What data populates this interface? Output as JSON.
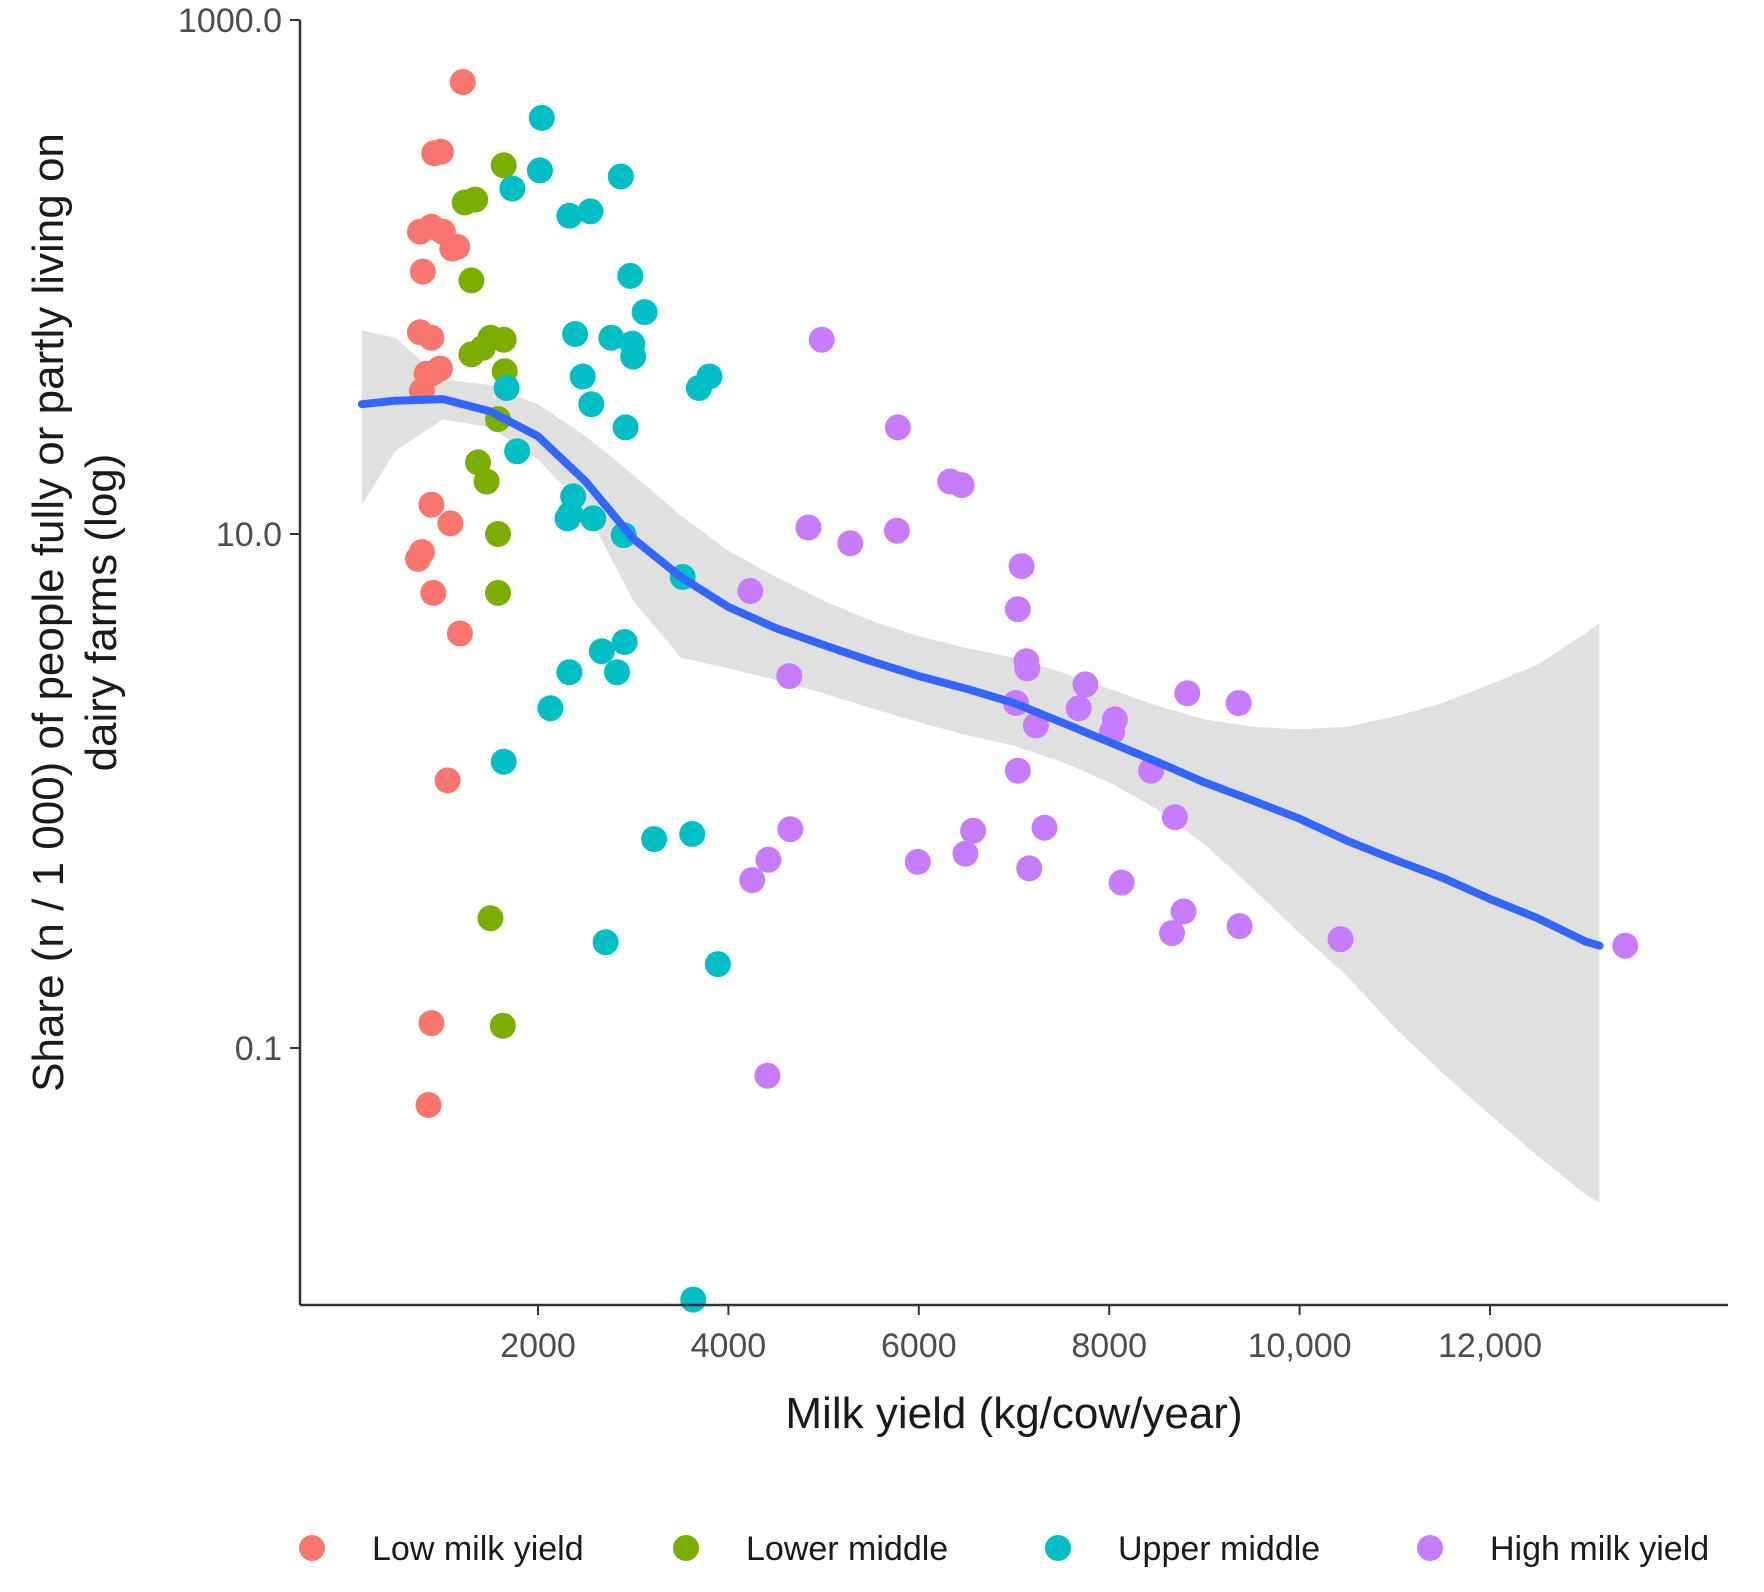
{
  "chart_data": {
    "type": "scatter",
    "title": "",
    "xlabel": "Milk yield (kg/cow/year)",
    "ylabel_lines": [
      "Share (n / 1 000) of people fully or partly living on",
      "dairy farms (log)"
    ],
    "x_scale": "linear",
    "y_scale": "log10",
    "xlim": [
      -500,
      14500
    ],
    "ylim": [
      0.01,
      1000
    ],
    "x_ticks": [
      2000,
      4000,
      6000,
      8000,
      10000,
      12000
    ],
    "x_tick_labels": [
      "2000",
      "4000",
      "6000",
      "8000",
      "10,000",
      "12,000"
    ],
    "y_ticks": [
      1000,
      10,
      0.1
    ],
    "y_tick_labels": [
      "1000.0",
      "10.0",
      "0.1"
    ],
    "grid": false,
    "legend_position": "bottom",
    "series": [
      {
        "name": "Low milk yield",
        "color": "#F8766D",
        "points": [
          [
            1210,
            574
          ],
          [
            910,
            303
          ],
          [
            980,
            307
          ],
          [
            880,
            157
          ],
          [
            1150,
            131
          ],
          [
            760,
            150
          ],
          [
            1000,
            150
          ],
          [
            1100,
            129
          ],
          [
            790,
            105
          ],
          [
            760,
            61
          ],
          [
            880,
            58
          ],
          [
            830,
            42
          ],
          [
            970,
            44
          ],
          [
            880,
            42
          ],
          [
            780,
            36
          ],
          [
            1080,
            11
          ],
          [
            880,
            13
          ],
          [
            740,
            8.0
          ],
          [
            780,
            8.5
          ],
          [
            900,
            5.9
          ],
          [
            1180,
            4.1
          ],
          [
            1050,
            1.1
          ],
          [
            880,
            0.125
          ],
          [
            850,
            0.06
          ]
        ]
      },
      {
        "name": "Lower middle",
        "color": "#7CAE00",
        "points": [
          [
            1340,
            200
          ],
          [
            1640,
            272
          ],
          [
            1230,
            195
          ],
          [
            1300,
            97
          ],
          [
            1500,
            58
          ],
          [
            1420,
            53
          ],
          [
            1300,
            50
          ],
          [
            1650,
            43
          ],
          [
            1640,
            57
          ],
          [
            1580,
            28
          ],
          [
            1370,
            19
          ],
          [
            1460,
            16
          ],
          [
            1580,
            10
          ],
          [
            1580,
            5.9
          ],
          [
            1500,
            0.32
          ],
          [
            1630,
            0.122
          ]
        ]
      },
      {
        "name": "Upper middle",
        "color": "#00BFC4",
        "points": [
          [
            2040,
            416
          ],
          [
            2020,
            260
          ],
          [
            1730,
            221
          ],
          [
            2870,
            246
          ],
          [
            2330,
            173
          ],
          [
            2550,
            180
          ],
          [
            2970,
            101
          ],
          [
            3120,
            73
          ],
          [
            2390,
            60
          ],
          [
            2770,
            58
          ],
          [
            2470,
            41
          ],
          [
            2990,
            55
          ],
          [
            3000,
            49
          ],
          [
            3690,
            37
          ],
          [
            3800,
            41
          ],
          [
            1670,
            37
          ],
          [
            2560,
            32
          ],
          [
            2920,
            26
          ],
          [
            1780,
            21
          ],
          [
            2340,
            12
          ],
          [
            2370,
            14
          ],
          [
            2310,
            11.5
          ],
          [
            2580,
            11.5
          ],
          [
            2900,
            9.9
          ],
          [
            3520,
            6.8
          ],
          [
            2670,
            3.5
          ],
          [
            2910,
            3.8
          ],
          [
            2830,
            2.9
          ],
          [
            2330,
            2.9
          ],
          [
            2130,
            2.1
          ],
          [
            1640,
            1.3
          ],
          [
            3220,
            0.65
          ],
          [
            3620,
            0.68
          ],
          [
            2710,
            0.258
          ],
          [
            3890,
            0.212
          ],
          [
            3630,
            0.0105
          ]
        ]
      },
      {
        "name": "High milk yield",
        "color": "#C77CFF",
        "points": [
          [
            4980,
            57
          ],
          [
            5780,
            26
          ],
          [
            6330,
            16
          ],
          [
            6450,
            15.5
          ],
          [
            4840,
            10.6
          ],
          [
            5280,
            9.2
          ],
          [
            5770,
            10.3
          ],
          [
            7080,
            7.5
          ],
          [
            7040,
            5.1
          ],
          [
            4230,
            6.0
          ],
          [
            7130,
            3.2
          ],
          [
            7140,
            3.0
          ],
          [
            4640,
            2.8
          ],
          [
            7750,
            2.6
          ],
          [
            7680,
            2.1
          ],
          [
            7020,
            2.2
          ],
          [
            7230,
            1.8
          ],
          [
            8060,
            1.9
          ],
          [
            8030,
            1.7
          ],
          [
            8820,
            2.4
          ],
          [
            9360,
            2.2
          ],
          [
            7040,
            1.2
          ],
          [
            8440,
            1.2
          ],
          [
            8690,
            0.79
          ],
          [
            7320,
            0.72
          ],
          [
            4650,
            0.71
          ],
          [
            6570,
            0.7
          ],
          [
            6490,
            0.57
          ],
          [
            5990,
            0.53
          ],
          [
            4420,
            0.54
          ],
          [
            4250,
            0.45
          ],
          [
            7160,
            0.5
          ],
          [
            8130,
            0.44
          ],
          [
            8780,
            0.34
          ],
          [
            8660,
            0.28
          ],
          [
            9370,
            0.298
          ],
          [
            10430,
            0.265
          ],
          [
            13420,
            0.25
          ],
          [
            4410,
            0.078
          ]
        ]
      }
    ],
    "smooth": {
      "name": "LOESS fit",
      "color": "#3366FF",
      "band_color": "#CCCCCC",
      "x": [
        150,
        500,
        1000,
        1500,
        2000,
        2500,
        3000,
        3500,
        4000,
        4500,
        5000,
        5500,
        6000,
        6500,
        7000,
        7500,
        8000,
        8500,
        9000,
        9500,
        10000,
        10500,
        11000,
        11500,
        12000,
        12500,
        13000,
        13150
      ],
      "y": [
        32,
        33,
        33.5,
        30,
        24,
        16,
        9.6,
        6.8,
        5.2,
        4.3,
        3.7,
        3.2,
        2.8,
        2.5,
        2.2,
        1.85,
        1.55,
        1.3,
        1.08,
        0.92,
        0.78,
        0.64,
        0.54,
        0.46,
        0.38,
        0.32,
        0.26,
        0.25
      ],
      "lower": [
        13,
        21,
        28,
        26,
        19.5,
        12.5,
        5.5,
        3.3,
        3.0,
        2.7,
        2.4,
        2.1,
        1.85,
        1.65,
        1.5,
        1.3,
        1.08,
        0.85,
        0.62,
        0.42,
        0.28,
        0.19,
        0.12,
        0.08,
        0.055,
        0.038,
        0.027,
        0.025
      ],
      "upper": [
        62,
        58,
        40,
        38,
        32,
        24,
        17,
        11.8,
        8.6,
        6.8,
        5.5,
        4.6,
        4.0,
        3.6,
        3.3,
        2.9,
        2.5,
        2.15,
        1.9,
        1.78,
        1.74,
        1.78,
        1.95,
        2.2,
        2.6,
        3.1,
        4.1,
        4.5
      ]
    }
  }
}
